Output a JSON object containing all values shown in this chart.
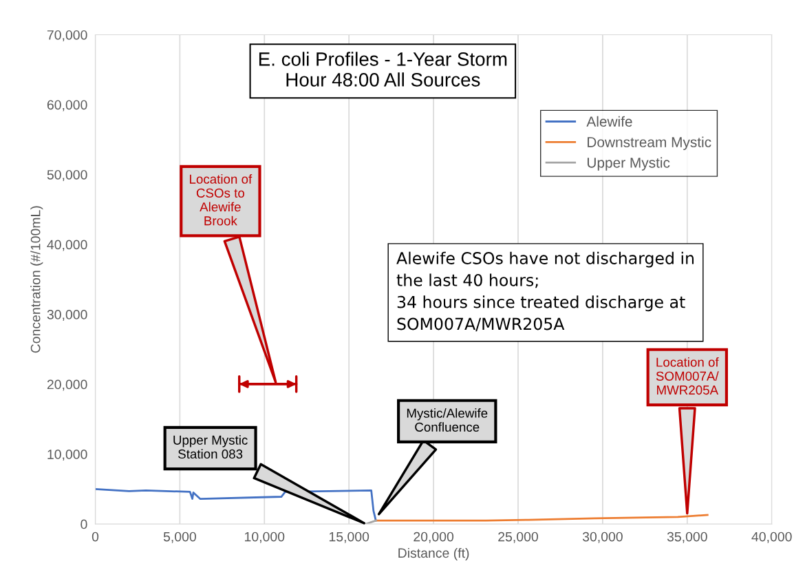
{
  "chart_data": {
    "type": "line",
    "title": "E. coli Profiles - 1-Year Storm\nHour 48:00 All Sources",
    "xlabel": "Distance (ft)",
    "ylabel": "Concentration (#/100mL)",
    "series": [
      {
        "name": "Alewife",
        "color": "#4472c4",
        "x": [
          0,
          2000,
          3000,
          5600,
          5740,
          5800,
          6200,
          11000,
          11230,
          16320,
          16450,
          16590
        ],
        "values": [
          5000,
          4700,
          4800,
          4600,
          3600,
          4500,
          3600,
          3900,
          4600,
          4800,
          1900,
          500
        ]
      },
      {
        "name": "Downstream Mystic",
        "color": "#ed7d31",
        "x": [
          16580,
          23100,
          25600,
          29500,
          34450,
          36200
        ],
        "values": [
          500,
          500,
          600,
          800,
          1000,
          1300
        ]
      },
      {
        "name": "Upper Mystic",
        "color": "#a5a5a5",
        "x": [
          16000,
          16600
        ],
        "values": [
          0,
          500
        ]
      }
    ],
    "xlim": [
      0,
      40000
    ],
    "ylim": [
      0,
      70000
    ],
    "xticks": [
      {
        "value": 0,
        "label": "0"
      },
      {
        "value": 5000,
        "label": "5,000"
      },
      {
        "value": 10000,
        "label": "10,000"
      },
      {
        "value": 15000,
        "label": "15,000"
      },
      {
        "value": 20000,
        "label": "20,000"
      },
      {
        "value": 25000,
        "label": "25,000"
      },
      {
        "value": 30000,
        "label": "30,000"
      },
      {
        "value": 35000,
        "label": "35,000"
      },
      {
        "value": 40000,
        "label": "40,000"
      }
    ],
    "yticks": [
      {
        "value": 0,
        "label": "0"
      },
      {
        "value": 10000,
        "label": "10,000"
      },
      {
        "value": 20000,
        "label": "20,000"
      },
      {
        "value": 30000,
        "label": "30,000"
      },
      {
        "value": 40000,
        "label": "40,000"
      },
      {
        "value": 50000,
        "label": "50,000"
      },
      {
        "value": 60000,
        "label": "60,000"
      },
      {
        "value": 70000,
        "label": "70,000"
      }
    ],
    "grid": "x",
    "legend": "top right",
    "annotations": [
      "Location of\nCSOs to\nAlewife\nBrook",
      "Upper Mystic\nStation 083",
      "Mystic/Alewife\nConfluence",
      "Location of\nSOM007A/\nMWR205A",
      "Alewife CSOs have not discharged in\nthe last 40 hours;\n34 hours since treated discharge at\nSOM007A/MWR205A"
    ]
  }
}
